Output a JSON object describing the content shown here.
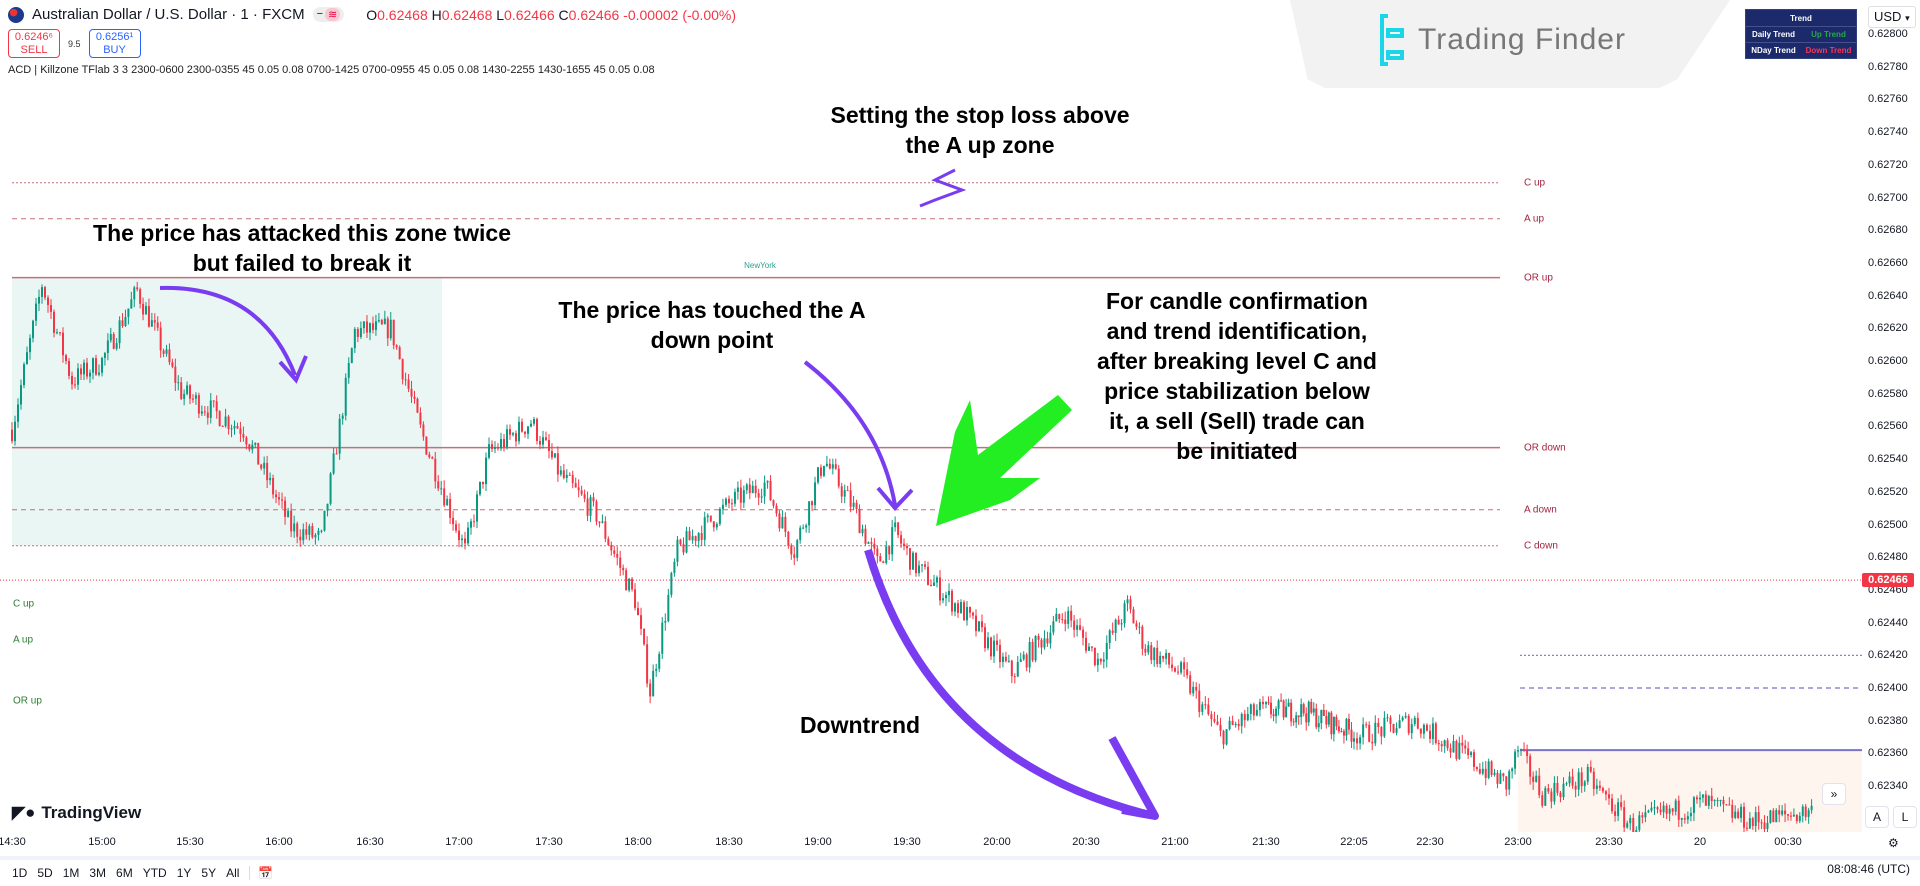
{
  "header": {
    "title": "Australian Dollar / U.S. Dollar · 1 · FXCM",
    "ohlc": {
      "o": "0.62468",
      "h": "0.62468",
      "l": "0.62466",
      "c": "0.62466",
      "chg": "-0.00002 (-0.00%)"
    },
    "sell": {
      "price": "0.6246⁶",
      "label": "SELL"
    },
    "spread": "9.5",
    "buy": {
      "price": "0.6256¹",
      "label": "BUY"
    },
    "indicator": "ACD | Killzone TFlab 3 3 2300-0600 2300-0355 45 0.05 0.08 0700-1425 0700-0955 45 0.05 0.08 1430-2255 1430-1655 45 0.05 0.08"
  },
  "logo": {
    "text": "Trading Finder"
  },
  "trend_table": {
    "title": "Trend",
    "rows": [
      {
        "label": "Daily Trend",
        "value": "Up Trend",
        "color": "#22aa44"
      },
      {
        "label": "NDay Trend",
        "value": "Down Trend",
        "color": "#ff3355"
      }
    ]
  },
  "currency": "USD",
  "colors": {
    "bull": "#089981",
    "bear": "#f23645",
    "level": "#c2707c",
    "level_label": "#a3243f",
    "green_label": "#2e7d32",
    "purple": "#7a3cf0",
    "green_arrow": "#22ee22",
    "session": "#e9f6f4"
  },
  "session_label": "NewYork",
  "levels_right": [
    {
      "label": "C up",
      "price": 0.62709,
      "style": "dotted"
    },
    {
      "label": "A up",
      "price": 0.62687,
      "style": "dashed"
    },
    {
      "label": "OR up",
      "price": 0.62651,
      "style": "solid"
    },
    {
      "label": "OR down",
      "price": 0.62547,
      "style": "solid"
    },
    {
      "label": "A down",
      "price": 0.62509,
      "style": "dashed"
    },
    {
      "label": "C down",
      "price": 0.62487,
      "style": "dotted"
    }
  ],
  "levels_left": [
    "C up",
    "A up",
    "OR up"
  ],
  "annotations": {
    "stop_loss": [
      "Setting the stop loss above",
      "the A up zone"
    ],
    "attacked": [
      "The price has attacked this zone twice",
      "but failed to break it"
    ],
    "touched": [
      "The price has touched the A",
      "down point"
    ],
    "confirm": [
      "For candle confirmation",
      "and trend identification,",
      "after breaking level C and",
      "price stabilization below",
      "it, a sell (Sell) trade can",
      "be initiated"
    ],
    "downtrend": "Downtrend"
  },
  "chart_data": {
    "type": "candlestick",
    "symbol": "AUDUSD",
    "timeframe": "1",
    "ylim": [
      0.6231,
      0.6282
    ],
    "y_ticks": [
      "0.62800",
      "0.62780",
      "0.62760",
      "0.62740",
      "0.62720",
      "0.62700",
      "0.62680",
      "0.62660",
      "0.62640",
      "0.62620",
      "0.62600",
      "0.62580",
      "0.62560",
      "0.62540",
      "0.62520",
      "0.62500",
      "0.62480",
      "0.62460",
      "0.62440",
      "0.62420",
      "0.62400",
      "0.62380",
      "0.62360",
      "0.62340"
    ],
    "x_ticks": [
      "14:30",
      "15:00",
      "15:30",
      "16:00",
      "16:30",
      "17:00",
      "17:30",
      "18:00",
      "18:30",
      "19:00",
      "19:30",
      "20:00",
      "20:30",
      "21:00",
      "21:30",
      "22:05",
      "22:30",
      "23:00",
      "23:30",
      "20",
      "00:30"
    ],
    "current_price": "0.62466",
    "close_path": [
      [
        "14:30",
        0.62558
      ],
      [
        "14:40",
        0.62647
      ],
      [
        "14:50",
        0.62588
      ],
      [
        "15:00",
        0.626
      ],
      [
        "15:12",
        0.62643
      ],
      [
        "15:27",
        0.62581
      ],
      [
        "15:48",
        0.62558
      ],
      [
        "16:04",
        0.62498
      ],
      [
        "16:14",
        0.62491
      ],
      [
        "16:25",
        0.62618
      ],
      [
        "16:37",
        0.6262
      ],
      [
        "16:47",
        0.62558
      ],
      [
        "17:02",
        0.62484
      ],
      [
        "17:10",
        0.62544
      ],
      [
        "17:24",
        0.62563
      ],
      [
        "17:34",
        0.6253
      ],
      [
        "17:46",
        0.62506
      ],
      [
        "17:59",
        0.62454
      ],
      [
        "18:04",
        0.62398
      ],
      [
        "18:13",
        0.62484
      ],
      [
        "18:31",
        0.62514
      ],
      [
        "18:42",
        0.62525
      ],
      [
        "18:52",
        0.62484
      ],
      [
        "19:02",
        0.6254
      ],
      [
        "19:12",
        0.6251
      ],
      [
        "19:20",
        0.62476
      ],
      [
        "19:26",
        0.62495
      ],
      [
        "19:32",
        0.62476
      ],
      [
        "19:49",
        0.62446
      ],
      [
        "20:05",
        0.62409
      ],
      [
        "20:23",
        0.62446
      ],
      [
        "20:34",
        0.62417
      ],
      [
        "20:44",
        0.6245
      ],
      [
        "20:50",
        0.62425
      ],
      [
        "21:02",
        0.62409
      ],
      [
        "21:15",
        0.62371
      ],
      [
        "21:27",
        0.62386
      ],
      [
        "21:45",
        0.62386
      ],
      [
        "22:07",
        0.62371
      ],
      [
        "22:25",
        0.6238
      ],
      [
        "22:43",
        0.62357
      ],
      [
        "22:56",
        0.62341
      ],
      [
        "23:00",
        0.62362
      ],
      [
        "23:08",
        0.62335
      ],
      [
        "23:23",
        0.62345
      ],
      [
        "23:37",
        0.62316
      ],
      [
        "00:01",
        0.6233
      ],
      [
        "00:18",
        0.62318
      ],
      [
        "00:38",
        0.62325
      ]
    ],
    "extra_lines": [
      {
        "price": 0.6242,
        "style": "dotted"
      },
      {
        "price": 0.624,
        "style": "dashed"
      },
      {
        "price": 0.62362,
        "style": "solid"
      }
    ]
  },
  "bottom": {
    "ranges": [
      "1D",
      "5D",
      "1M",
      "3M",
      "6M",
      "YTD",
      "1Y",
      "5Y",
      "All"
    ],
    "clock": "08:08:46 (UTC)"
  },
  "tv_logo": "TradingView"
}
